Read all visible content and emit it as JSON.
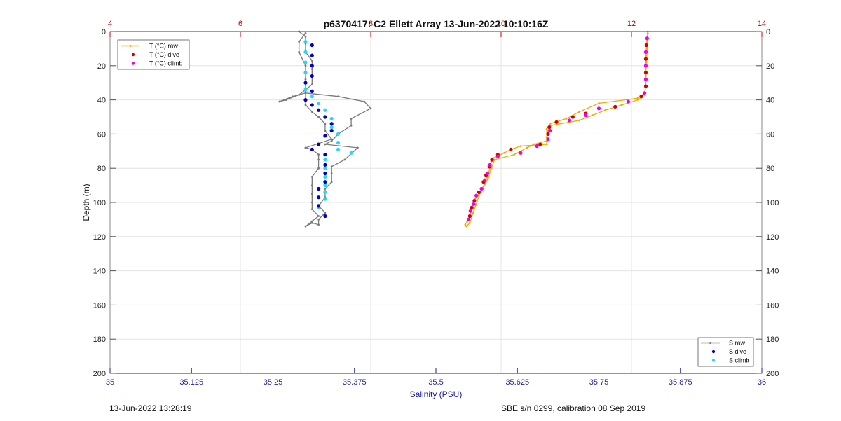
{
  "chart_data": {
    "type": "scatter",
    "title": "p6370417: C2 Ellett Array 13-Jun-2022 10:10:16Z",
    "xlabel": "Salinity (PSU)",
    "x2label": "",
    "ylabel": "Depth (m)",
    "xlim": [
      35,
      36
    ],
    "x2lim": [
      4,
      14
    ],
    "ylim": [
      0,
      200
    ],
    "y_reversed": true,
    "grid": true,
    "x_ticks": [
      "35",
      "35.125",
      "35.25",
      "35.375",
      "35.5",
      "35.625",
      "35.75",
      "35.875",
      "36"
    ],
    "x2_ticks": [
      "4",
      "6",
      "8",
      "10",
      "12",
      "14"
    ],
    "y_ticks": [
      "0",
      "20",
      "40",
      "60",
      "80",
      "100",
      "120",
      "140",
      "160",
      "180",
      "200"
    ],
    "colors": {
      "temp_raw": "#f5a800",
      "temp_dive": "#d40000",
      "temp_climb": "#ee00ee",
      "sal_raw": "#7a7a7a",
      "sal_dive": "#0000c8",
      "sal_climb": "#26d9f2",
      "top_axis": "#cc0000",
      "bottom_axis": "#1b1ba6",
      "grid": "#e4e4e4"
    },
    "legend_temperature": {
      "position": "top-left",
      "entries": [
        "T (°C) raw",
        "T (°C) dive",
        "T (°C) climb"
      ]
    },
    "legend_salinity": {
      "position": "bottom-right",
      "entries": [
        "S raw",
        "S dive",
        "S climb"
      ]
    },
    "temperature": {
      "raw": [
        [
          12.25,
          0
        ],
        [
          12.24,
          4
        ],
        [
          12.23,
          8
        ],
        [
          12.22,
          14
        ],
        [
          12.22,
          20
        ],
        [
          12.22,
          26
        ],
        [
          12.22,
          32
        ],
        [
          12.2,
          36
        ],
        [
          12.1,
          39
        ],
        [
          11.5,
          42
        ],
        [
          11.2,
          47
        ],
        [
          11.0,
          51
        ],
        [
          10.75,
          54
        ],
        [
          10.7,
          57
        ],
        [
          10.7,
          62
        ],
        [
          10.7,
          66
        ],
        [
          10.3,
          67
        ],
        [
          10.15,
          69
        ],
        [
          10.05,
          71
        ],
        [
          9.88,
          74
        ],
        [
          9.85,
          76
        ],
        [
          9.83,
          80
        ],
        [
          9.78,
          85
        ],
        [
          9.75,
          89
        ],
        [
          9.68,
          94
        ],
        [
          9.6,
          98
        ],
        [
          9.55,
          103
        ],
        [
          9.52,
          108
        ],
        [
          9.48,
          111
        ],
        [
          9.45,
          113
        ],
        [
          9.47,
          114
        ],
        [
          9.52,
          112
        ],
        [
          9.57,
          106
        ],
        [
          9.62,
          101
        ],
        [
          9.66,
          96
        ],
        [
          9.72,
          92
        ],
        [
          9.8,
          86
        ],
        [
          9.85,
          80
        ],
        [
          9.9,
          75
        ],
        [
          10.2,
          72
        ],
        [
          10.4,
          68
        ],
        [
          10.5,
          66
        ],
        [
          10.7,
          64
        ],
        [
          10.72,
          58
        ],
        [
          10.76,
          55
        ],
        [
          11.2,
          52
        ],
        [
          11.4,
          49
        ],
        [
          11.6,
          46
        ],
        [
          11.85,
          43
        ],
        [
          12.1,
          40
        ],
        [
          12.2,
          37
        ],
        [
          12.22,
          32
        ],
        [
          12.22,
          25
        ],
        [
          12.23,
          18
        ],
        [
          12.24,
          12
        ],
        [
          12.24,
          6
        ],
        [
          12.25,
          1
        ]
      ],
      "dive": [
        [
          12.23,
          8
        ],
        [
          12.22,
          16
        ],
        [
          12.22,
          24
        ],
        [
          12.22,
          32
        ],
        [
          12.15,
          38
        ],
        [
          11.75,
          44
        ],
        [
          11.3,
          48
        ],
        [
          11.1,
          50
        ],
        [
          10.85,
          53
        ],
        [
          10.74,
          56
        ],
        [
          10.72,
          60
        ],
        [
          10.6,
          66
        ],
        [
          10.15,
          69
        ],
        [
          9.95,
          72
        ],
        [
          9.86,
          75
        ],
        [
          9.82,
          79
        ],
        [
          9.77,
          84
        ],
        [
          9.73,
          88
        ],
        [
          9.66,
          94
        ],
        [
          9.59,
          99
        ],
        [
          9.55,
          103
        ],
        [
          9.52,
          108
        ]
      ],
      "climb": [
        [
          12.24,
          4
        ],
        [
          12.22,
          12
        ],
        [
          12.22,
          20
        ],
        [
          12.22,
          28
        ],
        [
          12.2,
          36
        ],
        [
          11.95,
          41
        ],
        [
          11.5,
          45
        ],
        [
          11.3,
          49
        ],
        [
          11.05,
          52
        ],
        [
          10.75,
          58
        ],
        [
          10.72,
          63
        ],
        [
          10.55,
          67
        ],
        [
          10.3,
          71
        ],
        [
          9.95,
          73
        ],
        [
          9.83,
          78
        ],
        [
          9.79,
          83
        ],
        [
          9.75,
          87
        ],
        [
          9.7,
          92
        ],
        [
          9.62,
          96
        ],
        [
          9.58,
          101
        ],
        [
          9.53,
          105
        ],
        [
          9.5,
          110
        ]
      ]
    },
    "salinity": {
      "raw": [
        [
          35.29,
          0
        ],
        [
          35.3,
          3
        ],
        [
          35.3,
          7
        ],
        [
          35.3,
          12
        ],
        [
          35.31,
          17
        ],
        [
          35.31,
          22
        ],
        [
          35.31,
          27
        ],
        [
          35.31,
          31
        ],
        [
          35.3,
          34
        ],
        [
          35.29,
          37
        ],
        [
          35.27,
          40
        ],
        [
          35.26,
          41
        ],
        [
          35.28,
          38
        ],
        [
          35.3,
          36
        ],
        [
          35.35,
          38
        ],
        [
          35.39,
          41
        ],
        [
          35.4,
          45
        ],
        [
          35.37,
          51
        ],
        [
          35.37,
          55
        ],
        [
          35.35,
          60
        ],
        [
          35.34,
          64
        ],
        [
          35.33,
          66
        ],
        [
          35.38,
          68
        ],
        [
          35.36,
          75
        ],
        [
          35.34,
          79
        ],
        [
          35.34,
          83
        ],
        [
          35.34,
          88
        ],
        [
          35.33,
          92
        ],
        [
          35.33,
          97
        ],
        [
          35.32,
          102
        ],
        [
          35.33,
          106
        ],
        [
          35.32,
          110
        ],
        [
          35.32,
          113
        ],
        [
          35.31,
          112
        ],
        [
          35.3,
          114
        ],
        [
          35.31,
          111
        ],
        [
          35.32,
          108
        ],
        [
          35.31,
          104
        ],
        [
          35.31,
          100
        ],
        [
          35.31,
          95
        ],
        [
          35.31,
          90
        ],
        [
          35.31,
          85
        ],
        [
          35.32,
          80
        ],
        [
          35.32,
          75
        ],
        [
          35.32,
          72
        ],
        [
          35.31,
          69
        ],
        [
          35.3,
          68
        ],
        [
          35.34,
          63
        ],
        [
          35.33,
          58
        ],
        [
          35.33,
          54
        ],
        [
          35.32,
          50
        ],
        [
          35.31,
          47
        ],
        [
          35.3,
          43
        ],
        [
          35.3,
          35
        ],
        [
          35.3,
          28
        ],
        [
          35.3,
          20
        ],
        [
          35.29,
          12
        ],
        [
          35.29,
          6
        ],
        [
          35.3,
          1
        ]
      ],
      "dive": [
        [
          35.31,
          8
        ],
        [
          35.31,
          14
        ],
        [
          35.31,
          20
        ],
        [
          35.31,
          26
        ],
        [
          35.3,
          30
        ],
        [
          35.31,
          35
        ],
        [
          35.3,
          40
        ],
        [
          35.31,
          43
        ],
        [
          35.32,
          46
        ],
        [
          35.33,
          50
        ],
        [
          35.34,
          54
        ],
        [
          35.34,
          58
        ],
        [
          35.33,
          61
        ],
        [
          35.32,
          66
        ],
        [
          35.31,
          69
        ],
        [
          35.33,
          72
        ],
        [
          35.33,
          78
        ],
        [
          35.33,
          83
        ],
        [
          35.33,
          88
        ],
        [
          35.32,
          92
        ],
        [
          35.32,
          97
        ],
        [
          35.32,
          102
        ],
        [
          35.33,
          108
        ]
      ],
      "climb": [
        [
          35.3,
          6
        ],
        [
          35.3,
          12
        ],
        [
          35.3,
          18
        ],
        [
          35.3,
          24
        ],
        [
          35.3,
          30
        ],
        [
          35.3,
          34
        ],
        [
          35.31,
          38
        ],
        [
          35.32,
          42
        ],
        [
          35.33,
          46
        ],
        [
          35.34,
          51
        ],
        [
          35.34,
          56
        ],
        [
          35.35,
          60
        ],
        [
          35.35,
          65
        ],
        [
          35.35,
          69
        ],
        [
          35.37,
          71
        ],
        [
          35.33,
          75
        ],
        [
          35.33,
          80
        ],
        [
          35.33,
          85
        ],
        [
          35.33,
          90
        ],
        [
          35.33,
          94
        ],
        [
          35.33,
          98
        ],
        [
          35.32,
          103
        ]
      ]
    }
  },
  "footer": {
    "left": "13-Jun-2022 13:28:19",
    "right": "SBE s/n 0299, calibration 08 Sep 2019"
  }
}
